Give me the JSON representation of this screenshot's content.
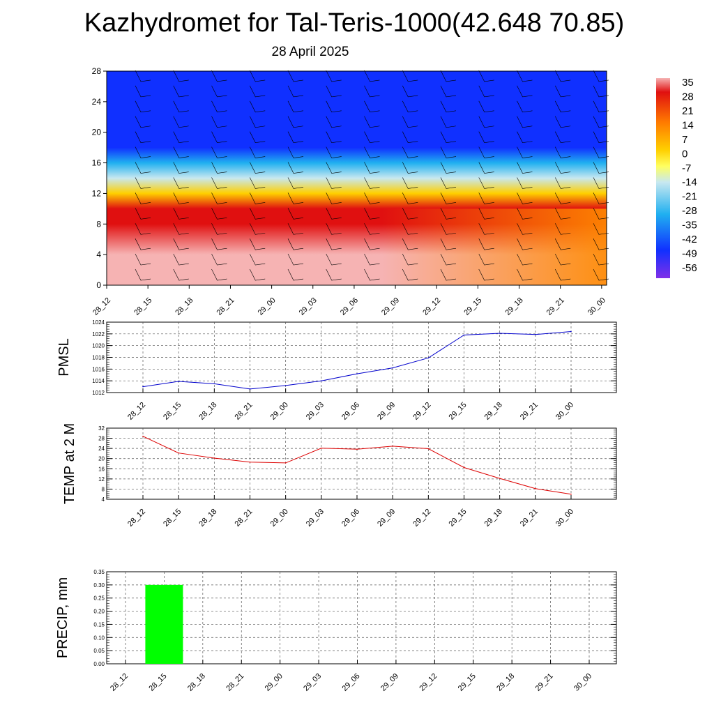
{
  "title": "Kazhydromet for Tal-Teris-1000(42.648 70.85)",
  "subtitle": "28 April 2025",
  "chart_data": [
    {
      "type": "heatmap",
      "name": "cross-section",
      "ylim": [
        0,
        28
      ],
      "yticks": [
        "0",
        "4",
        "8",
        "12",
        "16",
        "20",
        "24",
        "28"
      ],
      "categories": [
        "28_12",
        "28_15",
        "28_18",
        "28_21",
        "29_00",
        "29_03",
        "29_06",
        "29_09",
        "29_12",
        "29_15",
        "29_18",
        "29_21",
        "30_00"
      ],
      "colorbar": {
        "labels": [
          "35",
          "28",
          "21",
          "14",
          "7",
          "0",
          "-7",
          "-14",
          "-21",
          "-28",
          "-35",
          "-42",
          "-49",
          "-56"
        ],
        "colors": [
          "#f6b3b3",
          "#e01010",
          "#ff7a00",
          "#ffd000",
          "#ffff60",
          "#c8e8f0",
          "#20b0f0",
          "#1030ff",
          "#8030e8"
        ]
      },
      "approx_field_rows": [
        {
          "height": 0,
          "first": 33,
          "last": 14
        },
        {
          "height": 4,
          "first": 30,
          "last": 12
        },
        {
          "height": 8,
          "first": 22,
          "last": 14
        },
        {
          "height": 10,
          "first": 14,
          "last": 12
        },
        {
          "height": 12,
          "first": 2,
          "last": 2
        },
        {
          "height": 14,
          "first": -20,
          "last": -20
        },
        {
          "height": 16,
          "first": -42,
          "last": -42
        },
        {
          "height": 18,
          "first": -54,
          "last": -54
        },
        {
          "height": 20,
          "first": -60,
          "last": -60
        },
        {
          "height": 28,
          "first": -60,
          "last": -60
        }
      ]
    },
    {
      "type": "line",
      "ylabel": "PMSL",
      "ylim": [
        1012,
        1024
      ],
      "yticks": [
        "1012",
        "1014",
        "1016",
        "1018",
        "1020",
        "1022",
        "1024"
      ],
      "categories": [
        "28_12",
        "28_15",
        "28_18",
        "28_21",
        "29_00",
        "29_03",
        "29_06",
        "29_09",
        "29_12",
        "29_15",
        "29_18",
        "29_21",
        "30_00"
      ],
      "values": [
        1013.0,
        1013.9,
        1013.5,
        1012.6,
        1013.2,
        1014.0,
        1015.2,
        1016.2,
        1017.9,
        1021.8,
        1022.1,
        1021.9,
        1022.4
      ],
      "color": "#0000cc"
    },
    {
      "type": "line",
      "ylabel": "TEMP at 2 M",
      "ylim": [
        4,
        32
      ],
      "yticks": [
        "4",
        "8",
        "12",
        "16",
        "20",
        "24",
        "28",
        "32"
      ],
      "categories": [
        "28_12",
        "28_15",
        "28_18",
        "28_21",
        "29_00",
        "29_03",
        "29_06",
        "29_09",
        "29_12",
        "29_15",
        "29_18",
        "29_21",
        "30_00"
      ],
      "values": [
        28.8,
        22.2,
        20.2,
        18.6,
        18.3,
        24.1,
        23.7,
        24.9,
        23.9,
        16.5,
        12.2,
        8.2,
        6.0
      ],
      "color": "#dd0000"
    },
    {
      "type": "bar",
      "ylabel": "PRECIP, mm",
      "ylim": [
        0,
        0.35
      ],
      "yticks": [
        "0.00",
        "0.05",
        "0.10",
        "0.15",
        "0.20",
        "0.25",
        "0.30",
        "0.35"
      ],
      "categories": [
        "28_12",
        "28_15",
        "28_18",
        "28_21",
        "29_00",
        "29_03",
        "29_06",
        "29_09",
        "29_12",
        "29_15",
        "29_18",
        "29_21",
        "30_00"
      ],
      "values": [
        0,
        0.3,
        0,
        0,
        0,
        0,
        0,
        0,
        0,
        0,
        0,
        0,
        0
      ],
      "color": "#00ff00"
    }
  ]
}
